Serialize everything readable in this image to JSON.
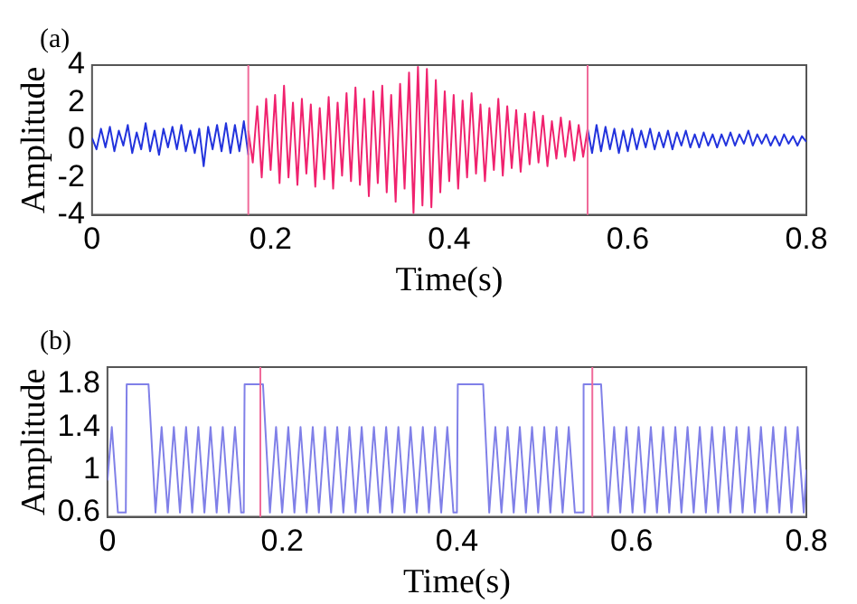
{
  "chart_data": [
    {
      "type": "line",
      "title": "(a)",
      "xlabel": "Time(s)",
      "ylabel": "Amplitude",
      "xlim": [
        0,
        0.8
      ],
      "xticks": [
        0,
        0.2,
        0.4,
        0.6,
        0.8
      ],
      "ylim": [
        -4,
        4
      ],
      "yticks": [
        -4,
        -2,
        0,
        2,
        4
      ],
      "marker": "none",
      "line_style": "solid",
      "series": [
        {
          "color": "#2233dd",
          "x": [
            0,
            0.005,
            0.01,
            0.015,
            0.02,
            0.025,
            0.03,
            0.035,
            0.04,
            0.045,
            0.05,
            0.055,
            0.06,
            0.065,
            0.07,
            0.075,
            0.08,
            0.085,
            0.09,
            0.095,
            0.1,
            0.105,
            0.11,
            0.115,
            0.12,
            0.125,
            0.13,
            0.135,
            0.14,
            0.145,
            0.15,
            0.155,
            0.16,
            0.165,
            0.17,
            0.175
          ],
          "values": [
            0.1,
            -0.5,
            0.6,
            -0.4,
            0.7,
            -0.6,
            0.5,
            -0.3,
            0.8,
            -0.7,
            0.4,
            -0.5,
            0.9,
            -0.6,
            0.5,
            -0.8,
            0.6,
            -0.4,
            0.7,
            -0.5,
            0.8,
            -0.6,
            0.5,
            -0.7,
            0.6,
            -1.4,
            0.7,
            -0.5,
            0.8,
            -0.6,
            0.9,
            -0.7,
            0.8,
            -0.6,
            1.0,
            -0.8
          ]
        },
        {
          "color": "#f0226e",
          "x": [
            0.175,
            0.18,
            0.185,
            0.19,
            0.195,
            0.2,
            0.205,
            0.21,
            0.215,
            0.22,
            0.225,
            0.23,
            0.235,
            0.24,
            0.245,
            0.25,
            0.255,
            0.26,
            0.265,
            0.27,
            0.275,
            0.28,
            0.285,
            0.29,
            0.295,
            0.3,
            0.305,
            0.31,
            0.315,
            0.32,
            0.325,
            0.33,
            0.335,
            0.34,
            0.345,
            0.35,
            0.355,
            0.36,
            0.365,
            0.37,
            0.375,
            0.38,
            0.385,
            0.39,
            0.395,
            0.4,
            0.405,
            0.41,
            0.415,
            0.42,
            0.425,
            0.43,
            0.435,
            0.44,
            0.445,
            0.45,
            0.455,
            0.46,
            0.465,
            0.47,
            0.475,
            0.48,
            0.485,
            0.49,
            0.495,
            0.5,
            0.505,
            0.51,
            0.515,
            0.52,
            0.525,
            0.53,
            0.535,
            0.54,
            0.545,
            0.55,
            0.555
          ],
          "values": [
            0.5,
            -1.2,
            1.8,
            -2.0,
            2.2,
            -1.6,
            2.4,
            -2.3,
            2.9,
            -2.0,
            2.0,
            -2.4,
            2.2,
            -1.8,
            1.9,
            -2.5,
            1.7,
            -2.1,
            2.3,
            -2.6,
            2.0,
            -1.9,
            2.5,
            -2.2,
            2.8,
            -2.4,
            2.2,
            -3.0,
            2.6,
            -2.3,
            2.9,
            -2.8,
            2.4,
            -3.3,
            3.0,
            -2.6,
            3.6,
            -3.9,
            3.9,
            -3.5,
            3.8,
            -3.6,
            3.2,
            -2.8,
            2.6,
            -2.2,
            2.4,
            -2.6,
            2.1,
            -2.0,
            2.5,
            -1.8,
            1.9,
            -2.2,
            1.7,
            -1.6,
            2.2,
            -1.9,
            1.8,
            -1.5,
            1.6,
            -1.7,
            1.4,
            -1.3,
            1.5,
            -1.2,
            1.3,
            -1.4,
            1.0,
            -1.0,
            1.2,
            -0.9,
            1.0,
            -1.1,
            0.8,
            -0.9,
            0.6
          ]
        },
        {
          "color": "#2233dd",
          "x": [
            0.555,
            0.56,
            0.565,
            0.57,
            0.575,
            0.58,
            0.585,
            0.59,
            0.595,
            0.6,
            0.605,
            0.61,
            0.615,
            0.62,
            0.625,
            0.63,
            0.635,
            0.64,
            0.645,
            0.65,
            0.655,
            0.66,
            0.665,
            0.67,
            0.675,
            0.68,
            0.685,
            0.69,
            0.695,
            0.7,
            0.705,
            0.71,
            0.715,
            0.72,
            0.725,
            0.73,
            0.735,
            0.74,
            0.745,
            0.75,
            0.755,
            0.76,
            0.765,
            0.77,
            0.775,
            0.78,
            0.785,
            0.79,
            0.795,
            0.8
          ],
          "values": [
            0.6,
            -0.7,
            0.8,
            -0.6,
            0.7,
            -0.5,
            0.6,
            -0.7,
            0.5,
            -0.6,
            0.6,
            -0.5,
            0.5,
            -0.4,
            0.6,
            -0.5,
            0.4,
            -0.4,
            0.5,
            -0.5,
            0.4,
            -0.3,
            0.5,
            -0.4,
            0.3,
            -0.4,
            0.4,
            -0.3,
            0.3,
            -0.4,
            0.3,
            -0.3,
            0.4,
            -0.3,
            0.3,
            -0.2,
            0.5,
            -0.3,
            0.3,
            -0.2,
            0.3,
            -0.3,
            0.2,
            -0.3,
            0.3,
            -0.2,
            0.2,
            -0.3,
            0.2,
            -0.1
          ]
        }
      ],
      "ref_lines": [
        {
          "axis": "x",
          "value": 0.175,
          "color": "#f06a9a"
        },
        {
          "axis": "x",
          "value": 0.555,
          "color": "#f06a9a"
        }
      ]
    },
    {
      "type": "line",
      "title": "(b)",
      "xlabel": "Time(s)",
      "ylabel": "Amplitude",
      "xlim": [
        0,
        0.8
      ],
      "xticks": [
        0,
        0.2,
        0.4,
        0.6,
        0.8
      ],
      "ylim": [
        0.56,
        1.96
      ],
      "yticks": [
        0.6,
        1,
        1.4,
        1.8
      ],
      "marker": "none",
      "line_style": "solid",
      "series": [
        {
          "color": "#8080e8",
          "x": [
            0,
            0.005,
            0.012,
            0.021,
            0.022,
            0.047,
            0.055,
            0.062,
            0.069,
            0.076,
            0.083,
            0.09,
            0.097,
            0.104,
            0.111,
            0.118,
            0.125,
            0.132,
            0.139,
            0.146,
            0.153,
            0.156,
            0.157,
            0.178,
            0.186,
            0.193,
            0.2,
            0.207,
            0.214,
            0.221,
            0.228,
            0.235,
            0.242,
            0.249,
            0.256,
            0.263,
            0.27,
            0.277,
            0.284,
            0.291,
            0.298,
            0.305,
            0.312,
            0.319,
            0.326,
            0.333,
            0.34,
            0.347,
            0.354,
            0.361,
            0.368,
            0.375,
            0.382,
            0.389,
            0.396,
            0.4,
            0.401,
            0.43,
            0.437,
            0.444,
            0.451,
            0.458,
            0.465,
            0.472,
            0.479,
            0.486,
            0.493,
            0.5,
            0.507,
            0.514,
            0.521,
            0.528,
            0.535,
            0.544,
            0.545,
            0.565,
            0.573,
            0.58,
            0.587,
            0.594,
            0.601,
            0.608,
            0.615,
            0.622,
            0.629,
            0.636,
            0.643,
            0.65,
            0.657,
            0.664,
            0.671,
            0.678,
            0.685,
            0.692,
            0.699,
            0.706,
            0.713,
            0.72,
            0.727,
            0.734,
            0.741,
            0.748,
            0.755,
            0.762,
            0.769,
            0.776,
            0.783,
            0.79,
            0.797,
            0.8
          ],
          "values": [
            0.9,
            1.4,
            0.6,
            0.6,
            1.8,
            1.8,
            0.6,
            1.4,
            0.6,
            1.4,
            0.6,
            1.4,
            0.6,
            1.4,
            0.6,
            1.4,
            0.6,
            1.4,
            0.6,
            1.4,
            0.6,
            0.6,
            1.8,
            1.8,
            0.6,
            1.4,
            0.6,
            1.4,
            0.6,
            1.4,
            0.6,
            1.4,
            0.6,
            1.4,
            0.6,
            1.4,
            0.6,
            1.4,
            0.6,
            1.4,
            0.6,
            1.4,
            0.6,
            1.4,
            0.6,
            1.4,
            0.6,
            1.4,
            0.6,
            1.4,
            0.6,
            1.4,
            0.6,
            1.4,
            0.6,
            0.6,
            1.8,
            1.8,
            0.6,
            1.4,
            0.6,
            1.4,
            0.6,
            1.4,
            0.6,
            1.4,
            0.6,
            1.4,
            0.6,
            1.4,
            0.6,
            1.4,
            0.6,
            0.6,
            1.8,
            1.8,
            0.6,
            1.4,
            0.6,
            1.4,
            0.6,
            1.4,
            0.6,
            1.4,
            0.6,
            1.4,
            0.6,
            1.4,
            0.6,
            1.4,
            0.6,
            1.4,
            0.6,
            1.4,
            0.6,
            1.4,
            0.6,
            1.4,
            0.6,
            1.4,
            0.6,
            1.4,
            0.6,
            1.4,
            0.6,
            1.4,
            0.6,
            1.4,
            0.6,
            1.0
          ]
        }
      ],
      "ref_lines": [
        {
          "axis": "x",
          "value": 0.175,
          "color": "#f06a9a"
        },
        {
          "axis": "x",
          "value": 0.555,
          "color": "#f06a9a"
        }
      ]
    }
  ]
}
